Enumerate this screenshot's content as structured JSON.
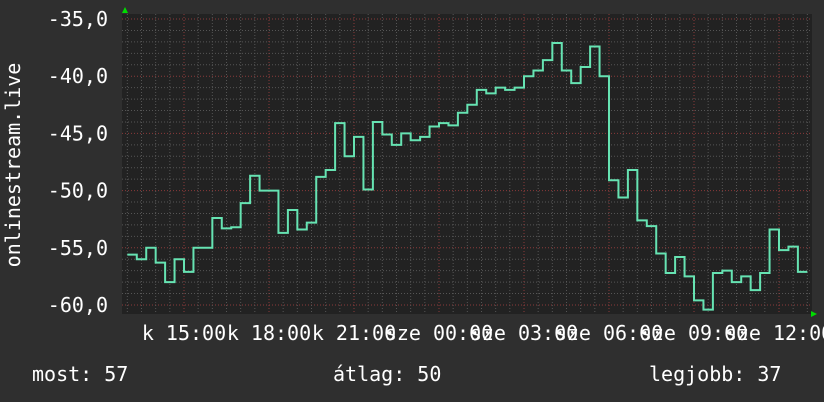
{
  "chart_data": {
    "type": "line",
    "ylabel": "onlinestream.live",
    "ylim": [
      -60.5,
      -35
    ],
    "yticks": [
      "-35,0",
      "-40,0",
      "-45,0",
      "-50,0",
      "-55,0",
      "-60,0"
    ],
    "ytick_values": [
      -35,
      -40,
      -45,
      -50,
      -55,
      -60
    ],
    "xticks": [
      "k 15:00",
      "k 18:00",
      "k 21:00",
      "sze 00:00",
      "sze 03:00",
      "sze 06:00",
      "sze 09:00",
      "sze 12:00"
    ],
    "grid": true,
    "colors": {
      "line": "#66e3b2",
      "background": "#2f2f2f",
      "plot_background": "#222222",
      "grid_minor": "#555555",
      "grid_major": "#8a3a3a",
      "arrow": "#00dd00"
    },
    "x": [
      "k 13:00",
      "k 13:20",
      "k 13:40",
      "k 14:00",
      "k 14:20",
      "k 14:40",
      "k 15:00",
      "k 15:20",
      "k 15:40",
      "k 16:00",
      "k 16:20",
      "k 16:40",
      "k 17:00",
      "k 17:20",
      "k 17:40",
      "k 18:00",
      "k 18:20",
      "k 18:40",
      "k 19:00",
      "k 19:20",
      "k 19:40",
      "k 20:00",
      "k 20:20",
      "k 20:40",
      "k 21:00",
      "k 21:20",
      "k 21:40",
      "k 22:00",
      "k 22:20",
      "k 22:40",
      "k 23:00",
      "k 23:20",
      "k 23:40",
      "sze 00:00",
      "sze 00:20",
      "sze 00:40",
      "sze 01:00",
      "sze 01:20",
      "sze 01:40",
      "sze 02:00",
      "sze 02:20",
      "sze 02:40",
      "sze 03:00",
      "sze 03:20",
      "sze 03:40",
      "sze 04:00",
      "sze 04:20",
      "sze 04:40",
      "sze 05:00",
      "sze 05:20",
      "sze 05:40",
      "sze 06:00",
      "sze 06:20",
      "sze 06:40",
      "sze 07:00",
      "sze 07:20",
      "sze 07:40",
      "sze 08:00",
      "sze 08:20",
      "sze 08:40",
      "sze 09:00",
      "sze 09:20",
      "sze 09:40",
      "sze 10:00",
      "sze 10:20",
      "sze 10:40",
      "sze 11:00",
      "sze 11:20",
      "sze 11:40",
      "sze 12:00",
      "sze 12:20",
      "sze 12:40",
      "sze 13:00"
    ],
    "values": [
      -55.6,
      -56.0,
      -55.0,
      -56.3,
      -58.0,
      -56.0,
      -57.1,
      -55.0,
      -55.0,
      -52.4,
      -53.3,
      -53.2,
      -51.1,
      -48.7,
      -50.0,
      -50.0,
      -53.7,
      -51.7,
      -53.4,
      -52.8,
      -48.8,
      -48.2,
      -44.1,
      -47.0,
      -45.3,
      -49.9,
      -44.0,
      -45.1,
      -46.0,
      -45.0,
      -45.6,
      -45.3,
      -44.4,
      -44.1,
      -44.3,
      -43.2,
      -42.5,
      -41.2,
      -41.5,
      -41.0,
      -41.2,
      -41.0,
      -40.0,
      -39.5,
      -38.6,
      -37.1,
      -39.5,
      -40.6,
      -39.2,
      -37.4,
      -40.0,
      -49.1,
      -50.6,
      -48.2,
      -52.6,
      -53.1,
      -55.5,
      -57.2,
      -55.8,
      -57.5,
      -59.6,
      -60.4,
      -57.2,
      -57.0,
      -58.0,
      -57.5,
      -58.7,
      -57.2,
      -53.4,
      -55.2,
      -54.9,
      -57.1,
      -57.1
    ]
  },
  "legend": {
    "current": "most: 57",
    "average": "átlag: 50",
    "best": "legjobb: 37"
  }
}
